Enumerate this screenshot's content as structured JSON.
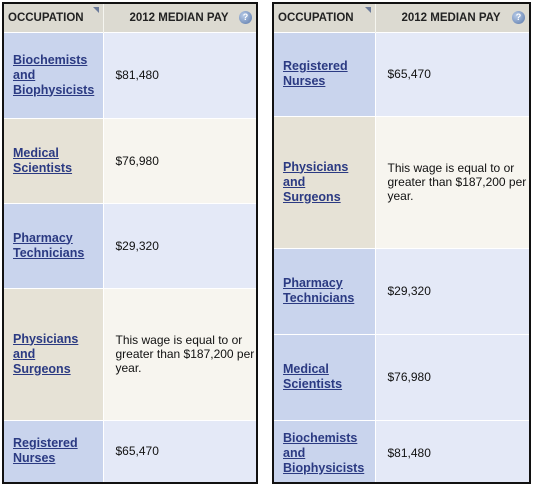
{
  "left_table": {
    "header": {
      "occupation": "OCCUPATION",
      "pay": "2012 MEDIAN PAY"
    },
    "rows": [
      {
        "occupation": "Biochemists and Biophysicists",
        "pay": "$81,480"
      },
      {
        "occupation": "Medical Scientists",
        "pay": "$76,980"
      },
      {
        "occupation": "Pharmacy Technicians",
        "pay": "$29,320"
      },
      {
        "occupation": "Physicians and Surgeons",
        "pay": "This wage is equal to or greater than $187,200 per year."
      },
      {
        "occupation": "Registered Nurses",
        "pay": "$65,470"
      }
    ]
  },
  "right_table": {
    "header": {
      "occupation": "OCCUPATION",
      "pay": "2012 MEDIAN PAY"
    },
    "rows": [
      {
        "occupation": "Registered Nurses",
        "pay": "$65,470"
      },
      {
        "occupation": "Physicians and Surgeons",
        "pay": "This wage is equal to or greater than $187,200 per year."
      },
      {
        "occupation": "Pharmacy Technicians",
        "pay": "$29,320"
      },
      {
        "occupation": "Medical Scientists",
        "pay": "$76,980"
      },
      {
        "occupation": "Biochemists and Biophysicists",
        "pay": "$81,480"
      }
    ]
  },
  "icons": {
    "help": "help-question-icon",
    "sort": "sort-corner-icon"
  },
  "colors": {
    "link": "#2b3a82",
    "row_blue_label": "#c9d4ed",
    "row_blue_value": "#e4e9f7",
    "row_cream_label": "#e6e2d6",
    "row_cream_value": "#f7f5ef",
    "header_bg": "#dcdad1"
  }
}
